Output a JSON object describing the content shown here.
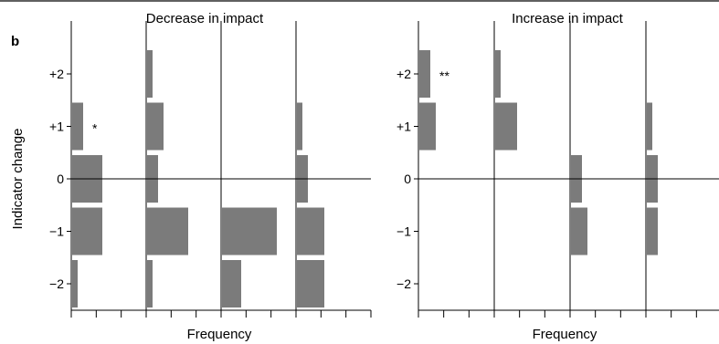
{
  "panel_label": "b",
  "chart_data": [
    {
      "type": "bar",
      "orientation": "horizontal",
      "title": "Decrease in impact",
      "ylabel": "Indicator change",
      "xlabel": "Frequency",
      "categories": [
        "+2",
        "+1",
        "0",
        "−1",
        "−2"
      ],
      "yvalues": [
        2,
        1,
        0,
        -1,
        -2
      ],
      "grid": false,
      "series": [
        {
          "values": [
            0,
            4,
            11,
            11,
            2
          ],
          "annotations": [
            "",
            "*",
            "",
            "",
            ""
          ]
        },
        {
          "values": [
            2,
            6,
            4,
            15,
            2
          ],
          "annotations": [
            "",
            "",
            "",
            "",
            ""
          ]
        },
        {
          "values": [
            0,
            0,
            0,
            20,
            7
          ],
          "annotations": [
            "",
            "",
            "",
            "",
            ""
          ]
        },
        {
          "values": [
            0,
            2,
            4,
            10,
            10
          ],
          "annotations": [
            "",
            "",
            "",
            "",
            ""
          ]
        }
      ]
    },
    {
      "type": "bar",
      "orientation": "horizontal",
      "title": "Increase in impact",
      "ylabel": "",
      "xlabel": "Frequency",
      "categories": [
        "+2",
        "+1",
        "0",
        "−1",
        "−2"
      ],
      "yvalues": [
        2,
        1,
        0,
        -1,
        -2
      ],
      "grid": false,
      "series": [
        {
          "values": [
            4,
            6,
            0,
            0,
            0
          ],
          "annotations": [
            "**",
            "",
            "",
            "",
            ""
          ]
        },
        {
          "values": [
            2,
            8,
            0,
            0,
            0
          ],
          "annotations": [
            "",
            "",
            "",
            "",
            ""
          ]
        },
        {
          "values": [
            0,
            0,
            4,
            6,
            0
          ],
          "annotations": [
            "",
            "",
            "",
            "",
            ""
          ]
        },
        {
          "values": [
            0,
            2,
            4,
            4,
            0
          ],
          "annotations": [
            "",
            "",
            "",
            "",
            ""
          ]
        }
      ]
    }
  ]
}
